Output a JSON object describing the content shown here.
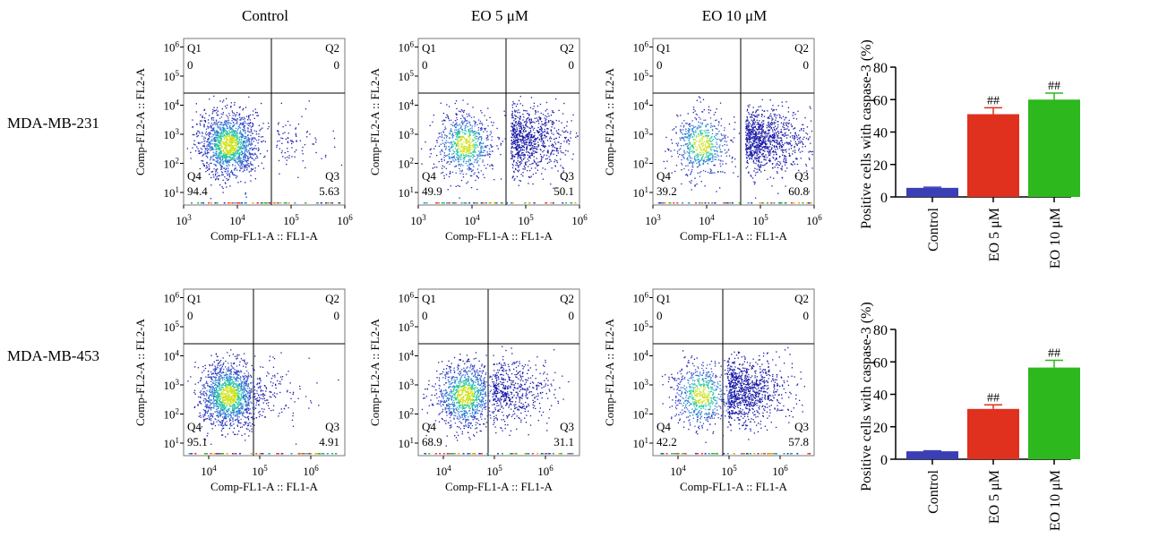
{
  "columns": [
    "Control",
    "EO 5 μM",
    "EO 10 μM"
  ],
  "rows": [
    "MDA-MB-231",
    "MDA-MB-453"
  ],
  "flow": {
    "xlabel": "Comp-FL1-A :: FL1-A",
    "ylabel": "Comp-FL2-A :: FL2-A",
    "quadrant_names": [
      "Q1",
      "Q2",
      "Q3",
      "Q4"
    ],
    "panels": [
      {
        "row": 0,
        "col": 0,
        "q1": "0",
        "q2": "0",
        "q3": "5.63",
        "q4": "94.4",
        "xticks": [
          "3",
          "4",
          "5",
          "6"
        ]
      },
      {
        "row": 0,
        "col": 1,
        "q1": "0",
        "q2": "0",
        "q3": "50.1",
        "q4": "49.9",
        "xticks": [
          "3",
          "4",
          "5",
          "6"
        ]
      },
      {
        "row": 0,
        "col": 2,
        "q1": "0",
        "q2": "0",
        "q3": "60.8",
        "q4": "39.2",
        "xticks": [
          "3",
          "4",
          "5",
          "6"
        ]
      },
      {
        "row": 1,
        "col": 0,
        "q1": "0",
        "q2": "0",
        "q3": "4.91",
        "q4": "95.1",
        "xticks": [
          "4",
          "5",
          "6"
        ]
      },
      {
        "row": 1,
        "col": 1,
        "q1": "0",
        "q2": "0",
        "q3": "31.1",
        "q4": "68.9",
        "xticks": [
          "4",
          "5",
          "6"
        ]
      },
      {
        "row": 1,
        "col": 2,
        "q1": "0",
        "q2": "0",
        "q3": "57.8",
        "q4": "42.2",
        "xticks": [
          "4",
          "5",
          "6"
        ]
      }
    ],
    "yticks": [
      "1",
      "2",
      "3",
      "4",
      "5",
      "6"
    ]
  },
  "chart_data": [
    {
      "type": "bar",
      "row": "MDA-MB-231",
      "categories": [
        "Control",
        "EO 5 μM",
        "EO 10 μM"
      ],
      "values": [
        5.6,
        51,
        60
      ],
      "errors": [
        0.4,
        4,
        4
      ],
      "annotations": [
        "",
        "##",
        "##"
      ],
      "colors": [
        "#3b3fb5",
        "#e0301e",
        "#2db81e"
      ],
      "ylabel": "Positive cells with caspase-3 (%)",
      "ylim": [
        0,
        80
      ],
      "yticks": [
        0,
        20,
        40,
        60,
        80
      ]
    },
    {
      "type": "bar",
      "row": "MDA-MB-453",
      "categories": [
        "Control",
        "EO 5 μM",
        "EO 10 μM"
      ],
      "values": [
        4.9,
        31,
        56.5
      ],
      "errors": [
        0.3,
        2.5,
        4.5
      ],
      "annotations": [
        "",
        "##",
        "##"
      ],
      "colors": [
        "#3b3fb5",
        "#e0301e",
        "#2db81e"
      ],
      "ylabel": "Positive cells with caspase-3 (%)",
      "ylim": [
        0,
        80
      ],
      "yticks": [
        0,
        20,
        40,
        60,
        80
      ]
    }
  ]
}
